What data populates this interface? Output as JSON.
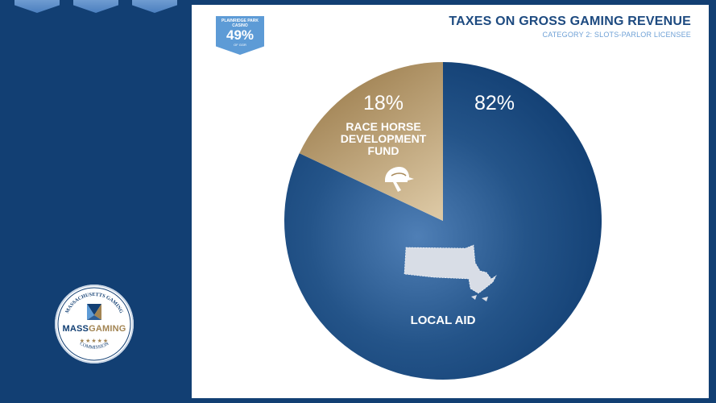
{
  "header": {
    "title": "TAXES ON GROSS GAMING REVENUE",
    "subtitle": "CATEGORY 2: SLOTS-PARLOR LICENSEE"
  },
  "badge": {
    "label": "PLAINRIDGE PARK CASINO",
    "value": "49%",
    "note": "OF GGR"
  },
  "logo": {
    "ring_top": "MASSACHUSETTS GAMING",
    "mass": "MASS",
    "gaming": "GAMING",
    "stars": "★★★★★",
    "ring_bottom": "COMMISSION"
  },
  "chart_data": {
    "type": "pie",
    "slices": [
      {
        "label": "LOCAL AID",
        "value": 82,
        "value_label": "82%",
        "color": "#123f73"
      },
      {
        "label": "RACE HORSE DEVELOPMENT FUND",
        "value": 18,
        "value_label": "18%",
        "color": "#a98a5a"
      }
    ],
    "legend": "none"
  },
  "colors": {
    "navy": "#123f73",
    "gold": "#a98a5a",
    "light_blue": "#5d9bd6"
  },
  "icons": [
    "horse-racing-helmet-icon",
    "massachusetts-map-icon"
  ]
}
